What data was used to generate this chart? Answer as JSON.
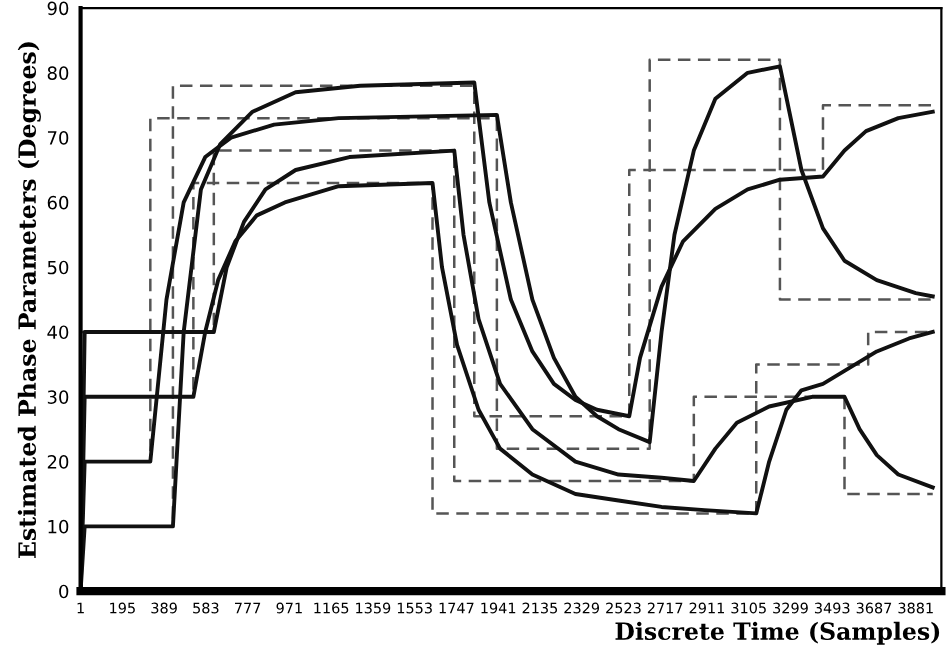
{
  "chart_data": {
    "type": "line",
    "xlabel": "Discrete Time (Samples)",
    "ylabel": "Estimated Phase Parameters (Degrees)",
    "xlim": [
      1,
      4000
    ],
    "ylim": [
      0,
      90
    ],
    "xticks": [
      1,
      195,
      389,
      583,
      777,
      971,
      1165,
      1359,
      1553,
      1747,
      1941,
      2135,
      2329,
      2523,
      2717,
      2911,
      3105,
      3299,
      3493,
      3687,
      3881
    ],
    "yticks": [
      0,
      10,
      20,
      30,
      40,
      50,
      60,
      70,
      80,
      90
    ],
    "grid": false,
    "legend": false,
    "series": [
      {
        "type": "step",
        "line_style": "dashed",
        "color": "#555555",
        "x": [
          1,
          325,
          1935,
          2645,
          3250,
          3960
        ],
        "values": [
          20,
          73,
          22,
          82,
          45,
          45
        ]
      },
      {
        "type": "step",
        "line_style": "dashed",
        "color": "#555555",
        "x": [
          1,
          430,
          1830,
          2550,
          3450,
          3960
        ],
        "values": [
          10,
          78,
          27,
          65,
          75,
          75
        ]
      },
      {
        "type": "step",
        "line_style": "dashed",
        "color": "#555555",
        "x": [
          1,
          525,
          1636,
          3140,
          3660,
          3960
        ],
        "values": [
          30,
          63,
          12,
          35,
          40,
          40
        ]
      },
      {
        "type": "step",
        "line_style": "dashed",
        "color": "#555555",
        "x": [
          1,
          620,
          1737,
          2850,
          3550,
          3960
        ],
        "values": [
          40,
          68,
          17,
          30,
          15,
          15
        ]
      },
      {
        "line_style": "solid",
        "color": "#111111",
        "x": [
          1,
          20,
          325,
          400,
          480,
          580,
          700,
          900,
          1200,
          1935,
          2000,
          2100,
          2200,
          2300,
          2400,
          2500,
          2645,
          2700,
          2760,
          2850,
          2950,
          3100,
          3250,
          3350,
          3450,
          3550,
          3700,
          3881,
          3960
        ],
        "values": [
          0,
          20,
          20,
          45,
          60,
          67,
          70,
          72,
          73,
          73.5,
          60,
          45,
          36,
          30,
          27,
          25,
          23,
          40,
          55,
          68,
          76,
          80,
          81,
          65,
          56,
          51,
          48,
          46,
          45.5
        ]
      },
      {
        "line_style": "solid",
        "color": "#111111",
        "x": [
          1,
          20,
          430,
          480,
          560,
          650,
          800,
          1000,
          1300,
          1830,
          1900,
          2000,
          2100,
          2200,
          2300,
          2400,
          2550,
          2600,
          2700,
          2800,
          2950,
          3100,
          3250,
          3450,
          3550,
          3650,
          3800,
          3960
        ],
        "values": [
          0,
          10,
          10,
          40,
          62,
          69,
          74,
          77,
          78,
          78.5,
          60,
          45,
          37,
          32,
          29.5,
          28,
          27,
          36,
          47,
          54,
          59,
          62,
          63.5,
          64,
          68,
          71,
          73,
          74
        ]
      },
      {
        "line_style": "solid",
        "color": "#111111",
        "x": [
          1,
          20,
          525,
          580,
          640,
          720,
          820,
          950,
          1200,
          1636,
          1680,
          1750,
          1850,
          1950,
          2100,
          2300,
          2500,
          2700,
          2900,
          3140,
          3200,
          3280,
          3350,
          3450,
          3550,
          3700,
          3850,
          3960
        ],
        "values": [
          0,
          30,
          30,
          40,
          48,
          54,
          58,
          60,
          62.5,
          63,
          50,
          38,
          28,
          22,
          18,
          15,
          14,
          13,
          12.5,
          12,
          20,
          28,
          31,
          32,
          34,
          37,
          39,
          40
        ]
      },
      {
        "line_style": "solid",
        "color": "#111111",
        "x": [
          1,
          20,
          620,
          680,
          760,
          860,
          1000,
          1250,
          1737,
          1780,
          1850,
          1950,
          2100,
          2300,
          2500,
          2700,
          2850,
          2950,
          3050,
          3200,
          3400,
          3550,
          3620,
          3700,
          3800,
          3960
        ],
        "values": [
          0,
          40,
          40,
          50,
          57,
          62,
          65,
          67,
          68,
          55,
          42,
          32,
          25,
          20,
          18,
          17.5,
          17,
          22,
          26,
          28.5,
          30,
          30,
          25,
          21,
          18,
          16
        ]
      }
    ]
  }
}
